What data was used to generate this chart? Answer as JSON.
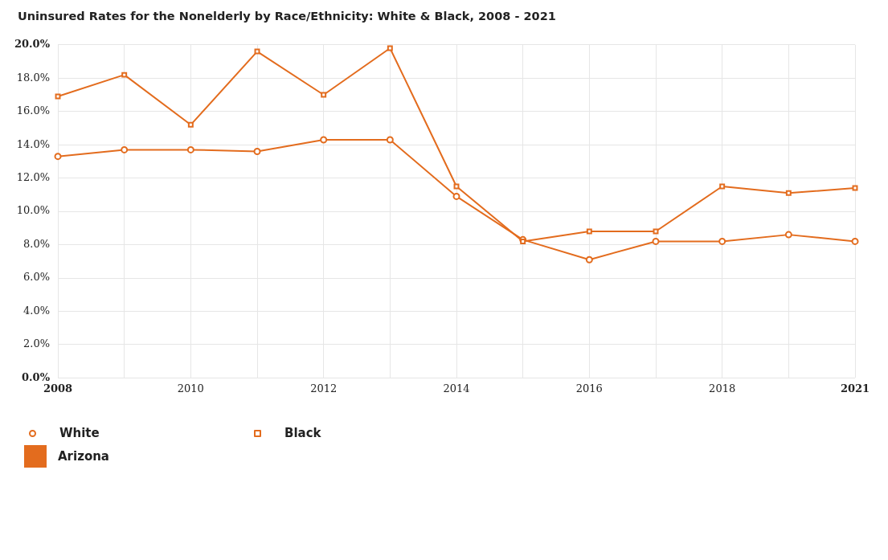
{
  "chart_data": {
    "type": "line",
    "title": "Uninsured Rates for the Nonelderly by Race/Ethnicity: White & Black, 2008 - 2021",
    "categories": [
      "2008",
      null,
      "2010",
      null,
      "2012",
      null,
      "2014",
      null,
      "2016",
      null,
      "2018",
      null,
      "2021"
    ],
    "series": [
      {
        "name": "White",
        "color": "#e36c1e",
        "marker": "circle",
        "values": [
          13.3,
          13.7,
          13.7,
          13.6,
          14.3,
          14.3,
          10.9,
          8.3,
          7.1,
          8.2,
          8.2,
          8.6,
          8.2
        ]
      },
      {
        "name": "Black",
        "color": "#e36c1e",
        "marker": "square",
        "values": [
          16.9,
          18.2,
          15.2,
          19.6,
          17.0,
          19.8,
          11.5,
          8.2,
          8.8,
          8.8,
          11.5,
          11.1,
          11.4
        ]
      }
    ],
    "ylim": [
      0,
      20
    ],
    "yticks": [
      {
        "value": 0,
        "label": "0.0%"
      },
      {
        "value": 2,
        "label": "2.0%"
      },
      {
        "value": 4,
        "label": "4.0%"
      },
      {
        "value": 6,
        "label": "6.0%"
      },
      {
        "value": 8,
        "label": "8.0%"
      },
      {
        "value": 10,
        "label": "10.0%"
      },
      {
        "value": 12,
        "label": "12.0%"
      },
      {
        "value": 14,
        "label": "14.0%"
      },
      {
        "value": 16,
        "label": "16.0%"
      },
      {
        "value": 18,
        "label": "18.0%"
      },
      {
        "value": 20,
        "label": "20.0%"
      }
    ],
    "grid": true,
    "legend": "bottom",
    "legend_title": "Arizona",
    "line_style": "solid"
  }
}
